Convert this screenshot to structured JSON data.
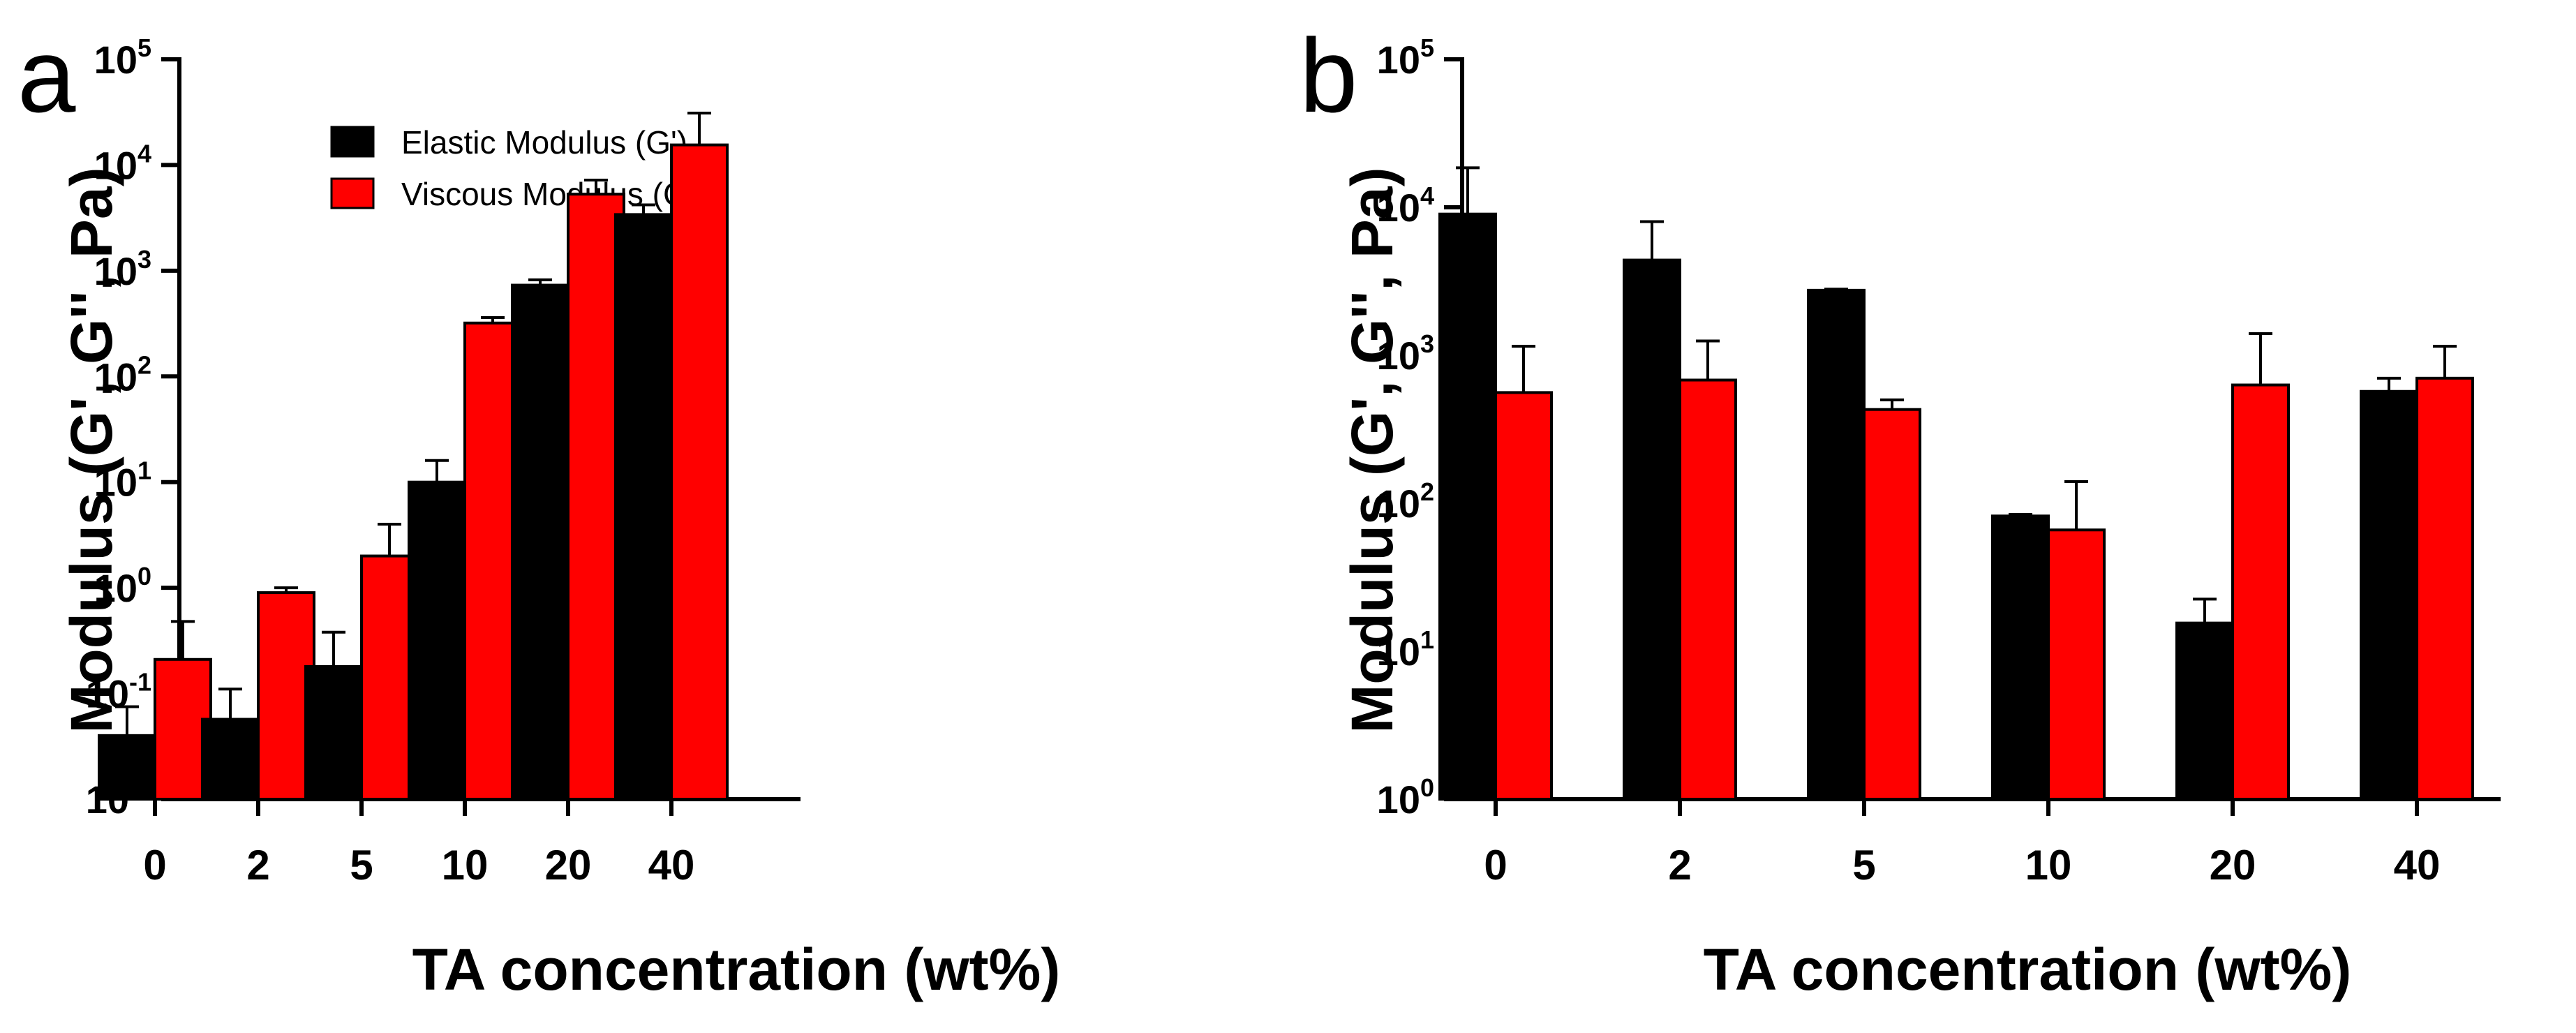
{
  "chart_data": [
    {
      "panel_label": "a",
      "type": "bar",
      "yscale": "log",
      "ylim": [
        0.01,
        100000
      ],
      "title": "",
      "xlabel": "TA concentration (wt%)",
      "ylabel": "Modulus (G', G'', Pa)",
      "categories": [
        "0",
        "2",
        "5",
        "10",
        "20",
        "40"
      ],
      "y_ticks": [
        {
          "base": "10",
          "exp": "5"
        },
        {
          "base": "10",
          "exp": "4"
        },
        {
          "base": "10",
          "exp": "3"
        },
        {
          "base": "10",
          "exp": "2"
        },
        {
          "base": "10",
          "exp": "1"
        },
        {
          "base": "10",
          "exp": "0"
        },
        {
          "base": "10",
          "exp": "-1"
        },
        {
          "base": "10",
          "exp": "-2"
        }
      ],
      "legend": "top-left",
      "series": [
        {
          "name": "Elastic Modulus (G')",
          "color": "#000000",
          "values": [
            0.04,
            0.057,
            0.18,
            10,
            730,
            3400
          ],
          "errors_upper": [
            0.075,
            0.11,
            0.38,
            16,
            820,
            4200
          ]
        },
        {
          "name": "Viscous Modulus (G\")",
          "color": "#ff0000",
          "values": [
            0.21,
            0.9,
            2.0,
            320,
            5300,
            15500
          ],
          "errors_upper": [
            0.48,
            1.0,
            4.0,
            360,
            7200,
            31000
          ]
        }
      ]
    },
    {
      "panel_label": "b",
      "type": "bar",
      "yscale": "log",
      "ylim": [
        1,
        100000
      ],
      "title": "",
      "xlabel": "TA concentration (wt%)",
      "ylabel": "Modulus (G', G'', Pa)",
      "categories": [
        "0",
        "2",
        "5",
        "10",
        "20",
        "40"
      ],
      "y_ticks": [
        {
          "base": "10",
          "exp": "5"
        },
        {
          "base": "10",
          "exp": "4"
        },
        {
          "base": "10",
          "exp": "3"
        },
        {
          "base": "10",
          "exp": "2"
        },
        {
          "base": "10",
          "exp": "1"
        },
        {
          "base": "10",
          "exp": "0"
        }
      ],
      "legend": "none",
      "series": [
        {
          "name": "Elastic Modulus (G')",
          "color": "#000000",
          "values": [
            9000,
            4400,
            2750,
            82,
            15.5,
            570
          ],
          "errors_upper": [
            18500,
            8000,
            2800,
            84,
            22.5,
            700
          ]
        },
        {
          "name": "Viscous Modulus (G\")",
          "color": "#ff0000",
          "values": [
            560,
            680,
            430,
            66,
            630,
            700
          ],
          "errors_upper": [
            1150,
            1250,
            500,
            140,
            1400,
            1150
          ]
        }
      ]
    }
  ]
}
